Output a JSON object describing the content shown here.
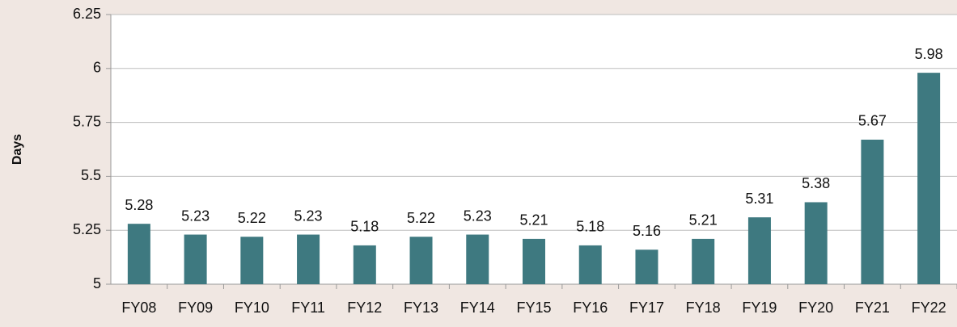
{
  "chart_data": {
    "type": "bar",
    "y_label": "Days",
    "categories": [
      "FY08",
      "FY09",
      "FY10",
      "FY11",
      "FY12",
      "FY13",
      "FY14",
      "FY15",
      "FY16",
      "FY17",
      "FY18",
      "FY19",
      "FY20",
      "FY21",
      "FY22"
    ],
    "values": [
      5.28,
      5.23,
      5.22,
      5.23,
      5.18,
      5.22,
      5.23,
      5.21,
      5.18,
      5.16,
      5.21,
      5.31,
      5.38,
      5.67,
      5.98
    ],
    "color": "#3e7980",
    "ylim": [
      5,
      6.25
    ],
    "yticks": [
      5,
      5.25,
      5.5,
      5.75,
      6,
      6.25
    ],
    "grid": true
  }
}
